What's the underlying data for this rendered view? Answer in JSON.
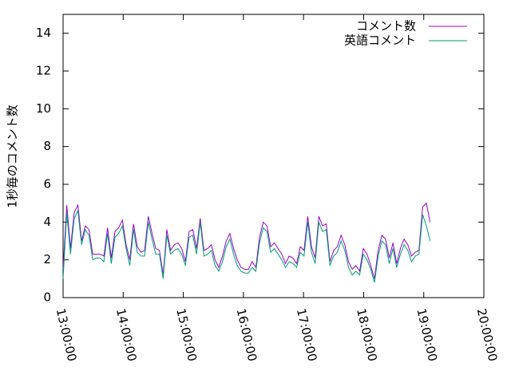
{
  "chart_data": {
    "type": "line",
    "ylabel": "1秒毎のコメント数",
    "x": [
      780,
      783.7,
      787.4,
      791.1,
      794.8,
      798.5,
      802.2,
      805.9,
      809.6,
      813.3,
      817,
      820.7,
      824.4,
      828.1,
      831.8,
      835.5,
      839.2,
      842.9,
      846.6,
      850.3,
      854,
      857.7,
      861.4,
      865.1,
      868.8,
      872.5,
      876.2,
      879.9,
      883.6,
      887.3,
      891,
      894.7,
      898.4,
      902.1,
      905.8,
      909.5,
      913.2,
      916.9,
      920.6,
      924.3,
      928,
      931.7,
      935.4,
      939.1,
      942.8,
      946.5,
      950.2,
      953.9,
      957.6,
      961.3,
      965,
      968.7,
      972.4,
      976.1,
      979.8,
      983.5,
      987.2,
      990.9,
      994.6,
      998.3,
      1002,
      1005.7,
      1009.4,
      1013.1,
      1016.8,
      1020.5,
      1024.2,
      1027.9,
      1031.6,
      1035.3,
      1039,
      1042.7,
      1046.4,
      1050.1,
      1053.8,
      1057.5,
      1061.2,
      1064.9,
      1068.6,
      1072.3,
      1076,
      1079.7,
      1083.4,
      1087.1,
      1090.8,
      1094.5,
      1098.2,
      1101.9,
      1105.6,
      1109.3,
      1113,
      1116.7,
      1120.4,
      1124.1,
      1127.8,
      1131.5,
      1135.2,
      1138.9,
      1142.6,
      1146.3
    ],
    "series": [
      {
        "name": "コメント数",
        "color": "#9400d3",
        "values": [
          1.5,
          4.9,
          2.6,
          4.5,
          4.9,
          3.0,
          3.8,
          3.6,
          2.3,
          2.3,
          2.3,
          2.2,
          3.7,
          2.1,
          3.5,
          3.7,
          4.1,
          2.8,
          2.0,
          3.9,
          2.7,
          2.4,
          2.5,
          4.3,
          3.4,
          2.6,
          2.5,
          1.2,
          3.6,
          2.5,
          2.8,
          2.9,
          2.6,
          1.9,
          3.5,
          3.6,
          2.6,
          4.2,
          2.5,
          2.6,
          2.8,
          2.0,
          1.6,
          2.2,
          3.0,
          3.4,
          2.6,
          2.0,
          1.6,
          1.5,
          1.5,
          1.9,
          1.6,
          3.2,
          4.0,
          3.8,
          2.7,
          2.9,
          2.6,
          2.3,
          1.8,
          2.2,
          2.1,
          1.8,
          2.7,
          2.5,
          4.3,
          2.7,
          2.1,
          4.3,
          3.8,
          3.9,
          1.9,
          2.5,
          2.7,
          3.3,
          2.8,
          1.9,
          1.5,
          1.7,
          1.4,
          2.6,
          2.3,
          1.7,
          1.0,
          2.5,
          3.3,
          3.1,
          2.1,
          2.9,
          1.8,
          2.6,
          3.1,
          2.8,
          2.2,
          2.4,
          2.5,
          4.8,
          5.0,
          4.0
        ]
      },
      {
        "name": "英語コメント",
        "color": "#009e73",
        "values": [
          1.0,
          4.5,
          2.3,
          4.2,
          4.6,
          2.8,
          3.6,
          3.3,
          2.0,
          2.1,
          2.1,
          1.9,
          3.4,
          1.8,
          3.2,
          3.4,
          3.8,
          2.6,
          1.7,
          3.6,
          2.4,
          2.2,
          2.2,
          4.0,
          3.1,
          2.3,
          2.3,
          1.0,
          3.3,
          2.3,
          2.5,
          2.6,
          2.3,
          1.7,
          3.2,
          3.3,
          2.3,
          4.0,
          2.2,
          2.3,
          2.5,
          1.7,
          1.4,
          1.9,
          2.7,
          3.1,
          2.3,
          1.7,
          1.4,
          1.3,
          1.3,
          1.6,
          1.4,
          2.9,
          3.7,
          3.5,
          2.4,
          2.6,
          2.3,
          2.0,
          1.6,
          1.9,
          1.8,
          1.6,
          2.4,
          2.2,
          4.0,
          2.4,
          1.8,
          4.0,
          3.5,
          3.6,
          1.7,
          2.2,
          2.4,
          3.0,
          2.5,
          1.6,
          1.2,
          1.4,
          1.2,
          2.3,
          2.0,
          1.5,
          0.8,
          2.2,
          3.0,
          2.8,
          1.8,
          2.6,
          1.6,
          2.3,
          2.8,
          2.5,
          1.9,
          2.2,
          2.3,
          4.4,
          3.8,
          3.0
        ]
      }
    ],
    "xlim": [
      780,
      1200
    ],
    "xticks": [
      {
        "value": 780,
        "label": "13:00:00"
      },
      {
        "value": 840,
        "label": "14:00:00"
      },
      {
        "value": 900,
        "label": "15:00:00"
      },
      {
        "value": 960,
        "label": "16:00:00"
      },
      {
        "value": 1020,
        "label": "17:00:00"
      },
      {
        "value": 1080,
        "label": "18:00:00"
      },
      {
        "value": 1140,
        "label": "19:00:00"
      },
      {
        "value": 1200,
        "label": "20:00:00"
      }
    ],
    "ylim": [
      0,
      15
    ],
    "yticks": [
      0,
      2,
      4,
      6,
      8,
      10,
      12,
      14
    ],
    "legend": "top-right"
  }
}
